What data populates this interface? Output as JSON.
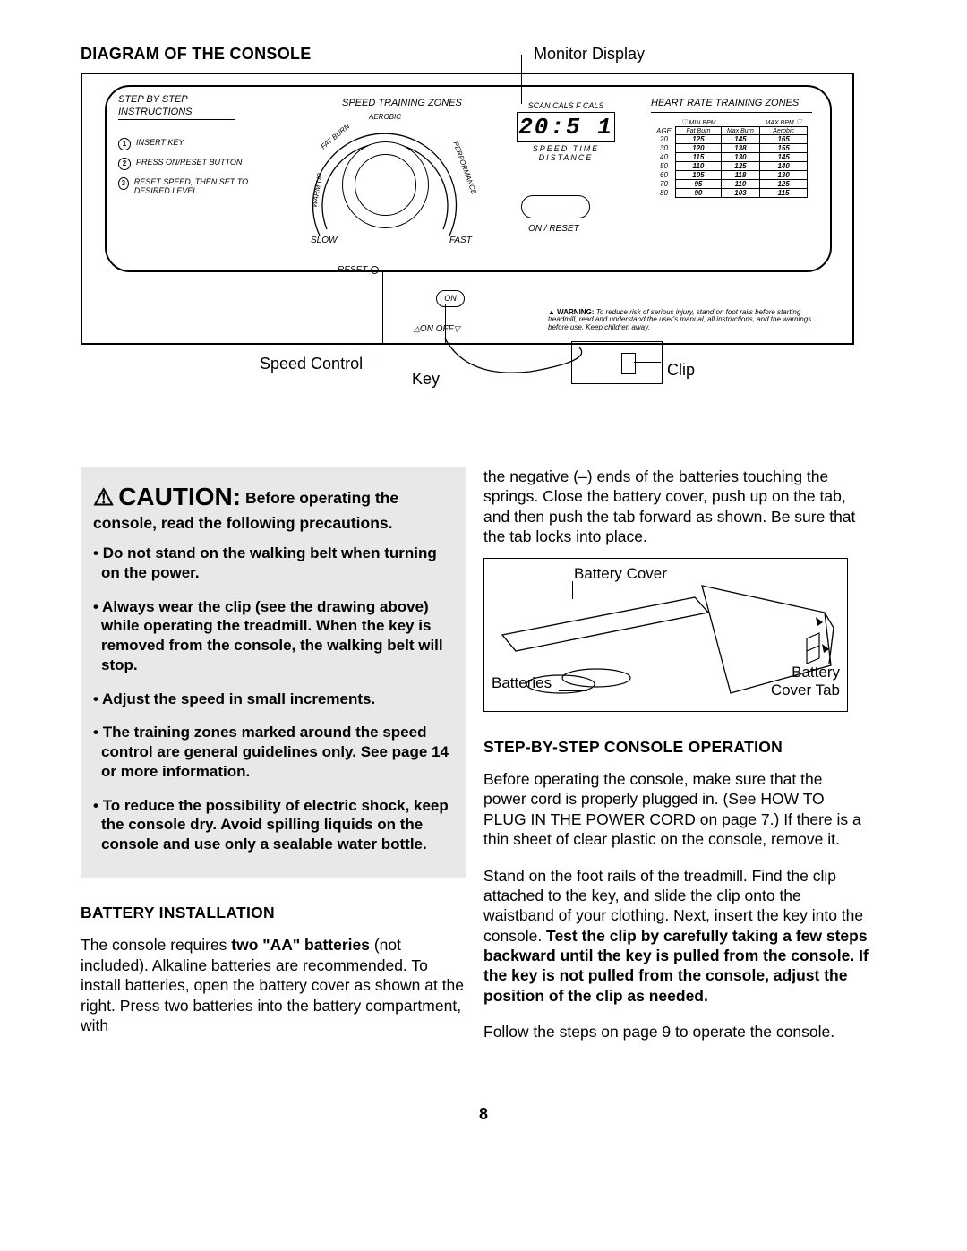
{
  "header": {
    "title": "DIAGRAM OF THE CONSOLE",
    "monitor_label": "Monitor Display"
  },
  "console": {
    "step_title_1": "STEP BY STEP",
    "step_title_2": "INSTRUCTIONS",
    "steps": [
      {
        "n": "1",
        "text": "INSERT KEY"
      },
      {
        "n": "2",
        "text": "PRESS ON/RESET BUTTON"
      },
      {
        "n": "3",
        "text": "RESET SPEED, THEN SET TO DESIRED LEVEL"
      }
    ],
    "speed_zone_title": "SPEED TRAINING ZONES",
    "zone_warmup": "WARM UP",
    "zone_fatburn": "FAT BURN",
    "zone_aerobic": "AEROBIC",
    "zone_perf": "PERFORMANCE",
    "slow": "SLOW",
    "fast": "FAST",
    "reset": "RESET",
    "lcd_top_labels": "SCAN  CALS  F CALS",
    "lcd_value": "20:5 1",
    "lcd_bottom_labels": "SPEED   TIME   DISTANCE",
    "on_reset": "ON / RESET",
    "hr_title": "HEART RATE TRAINING ZONES",
    "hr_head_minbpm": "MIN BPM",
    "hr_head_maxbpm": "MAX BPM",
    "hr_cols": [
      "AGE",
      "Fat Burn",
      "Max Burn",
      "Aerobic"
    ],
    "hr_rows": [
      [
        "20",
        "125",
        "145",
        "165"
      ],
      [
        "30",
        "120",
        "138",
        "155"
      ],
      [
        "40",
        "115",
        "130",
        "145"
      ],
      [
        "50",
        "110",
        "125",
        "140"
      ],
      [
        "60",
        "105",
        "118",
        "130"
      ],
      [
        "70",
        "95",
        "110",
        "125"
      ],
      [
        "80",
        "90",
        "103",
        "115"
      ]
    ],
    "on_label": "ON",
    "onoff_label": "ON  OFF",
    "small_warning_bold": "WARNING:",
    "small_warning_text": "To reduce risk of serious injury, stand on foot rails before starting treadmill, read and understand the user's manual, all instructions, and the warnings before use. Keep children away."
  },
  "callouts": {
    "speed_control": "Speed Control",
    "key": "Key",
    "clip": "Clip"
  },
  "left": {
    "caution_big": "CAUTION:",
    "caution_rest": "Before operating the console, read the following precautions.",
    "items": [
      "Do not stand on the walking belt when turning on the power.",
      "Always wear the clip (see the drawing above) while operating the treadmill. When the key is removed from the console, the walking belt will stop.",
      "Adjust the speed in small increments.",
      "The training zones marked around the speed control are general guidelines only. See page 14 or more information.",
      "To reduce the possibility of electric shock, keep the console dry. Avoid spilling liquids on the console and use only a sealable water bottle."
    ],
    "battery_head": "BATTERY INSTALLATION",
    "battery_p1a": "The console requires ",
    "battery_p1b": "two \"AA\" batteries",
    "battery_p1c": " (not included). Alkaline batteries are recommended. To install batteries, open the battery cover as shown at the right. Press two batteries into the battery compartment, with"
  },
  "right": {
    "p1": "the negative (–) ends of the batteries touching the springs. Close the battery cover, push up on the tab, and then push the tab forward as shown. Be sure that the tab locks into place.",
    "ill_bc": "Battery Cover",
    "ill_bat": "Batteries",
    "ill_tab1": "Battery",
    "ill_tab2": "Cover Tab",
    "step_head": "STEP-BY-STEP CONSOLE OPERATION",
    "p2": "Before operating the console, make sure that the power cord is properly plugged in. (See HOW TO PLUG IN THE POWER CORD on page 7.) If there is a thin sheet of clear plastic on the console, remove it.",
    "p3a": "Stand on the foot rails of the treadmill. Find the clip attached to the key, and slide the clip onto the waistband of your clothing. Next, insert the key into the console. ",
    "p3b": "Test the clip by carefully taking a few steps backward until the key is pulled from the console. If the key is not pulled from the console, adjust the position of the clip as needed.",
    "p4": "Follow the steps on page 9 to operate the console."
  },
  "page_number": "8"
}
